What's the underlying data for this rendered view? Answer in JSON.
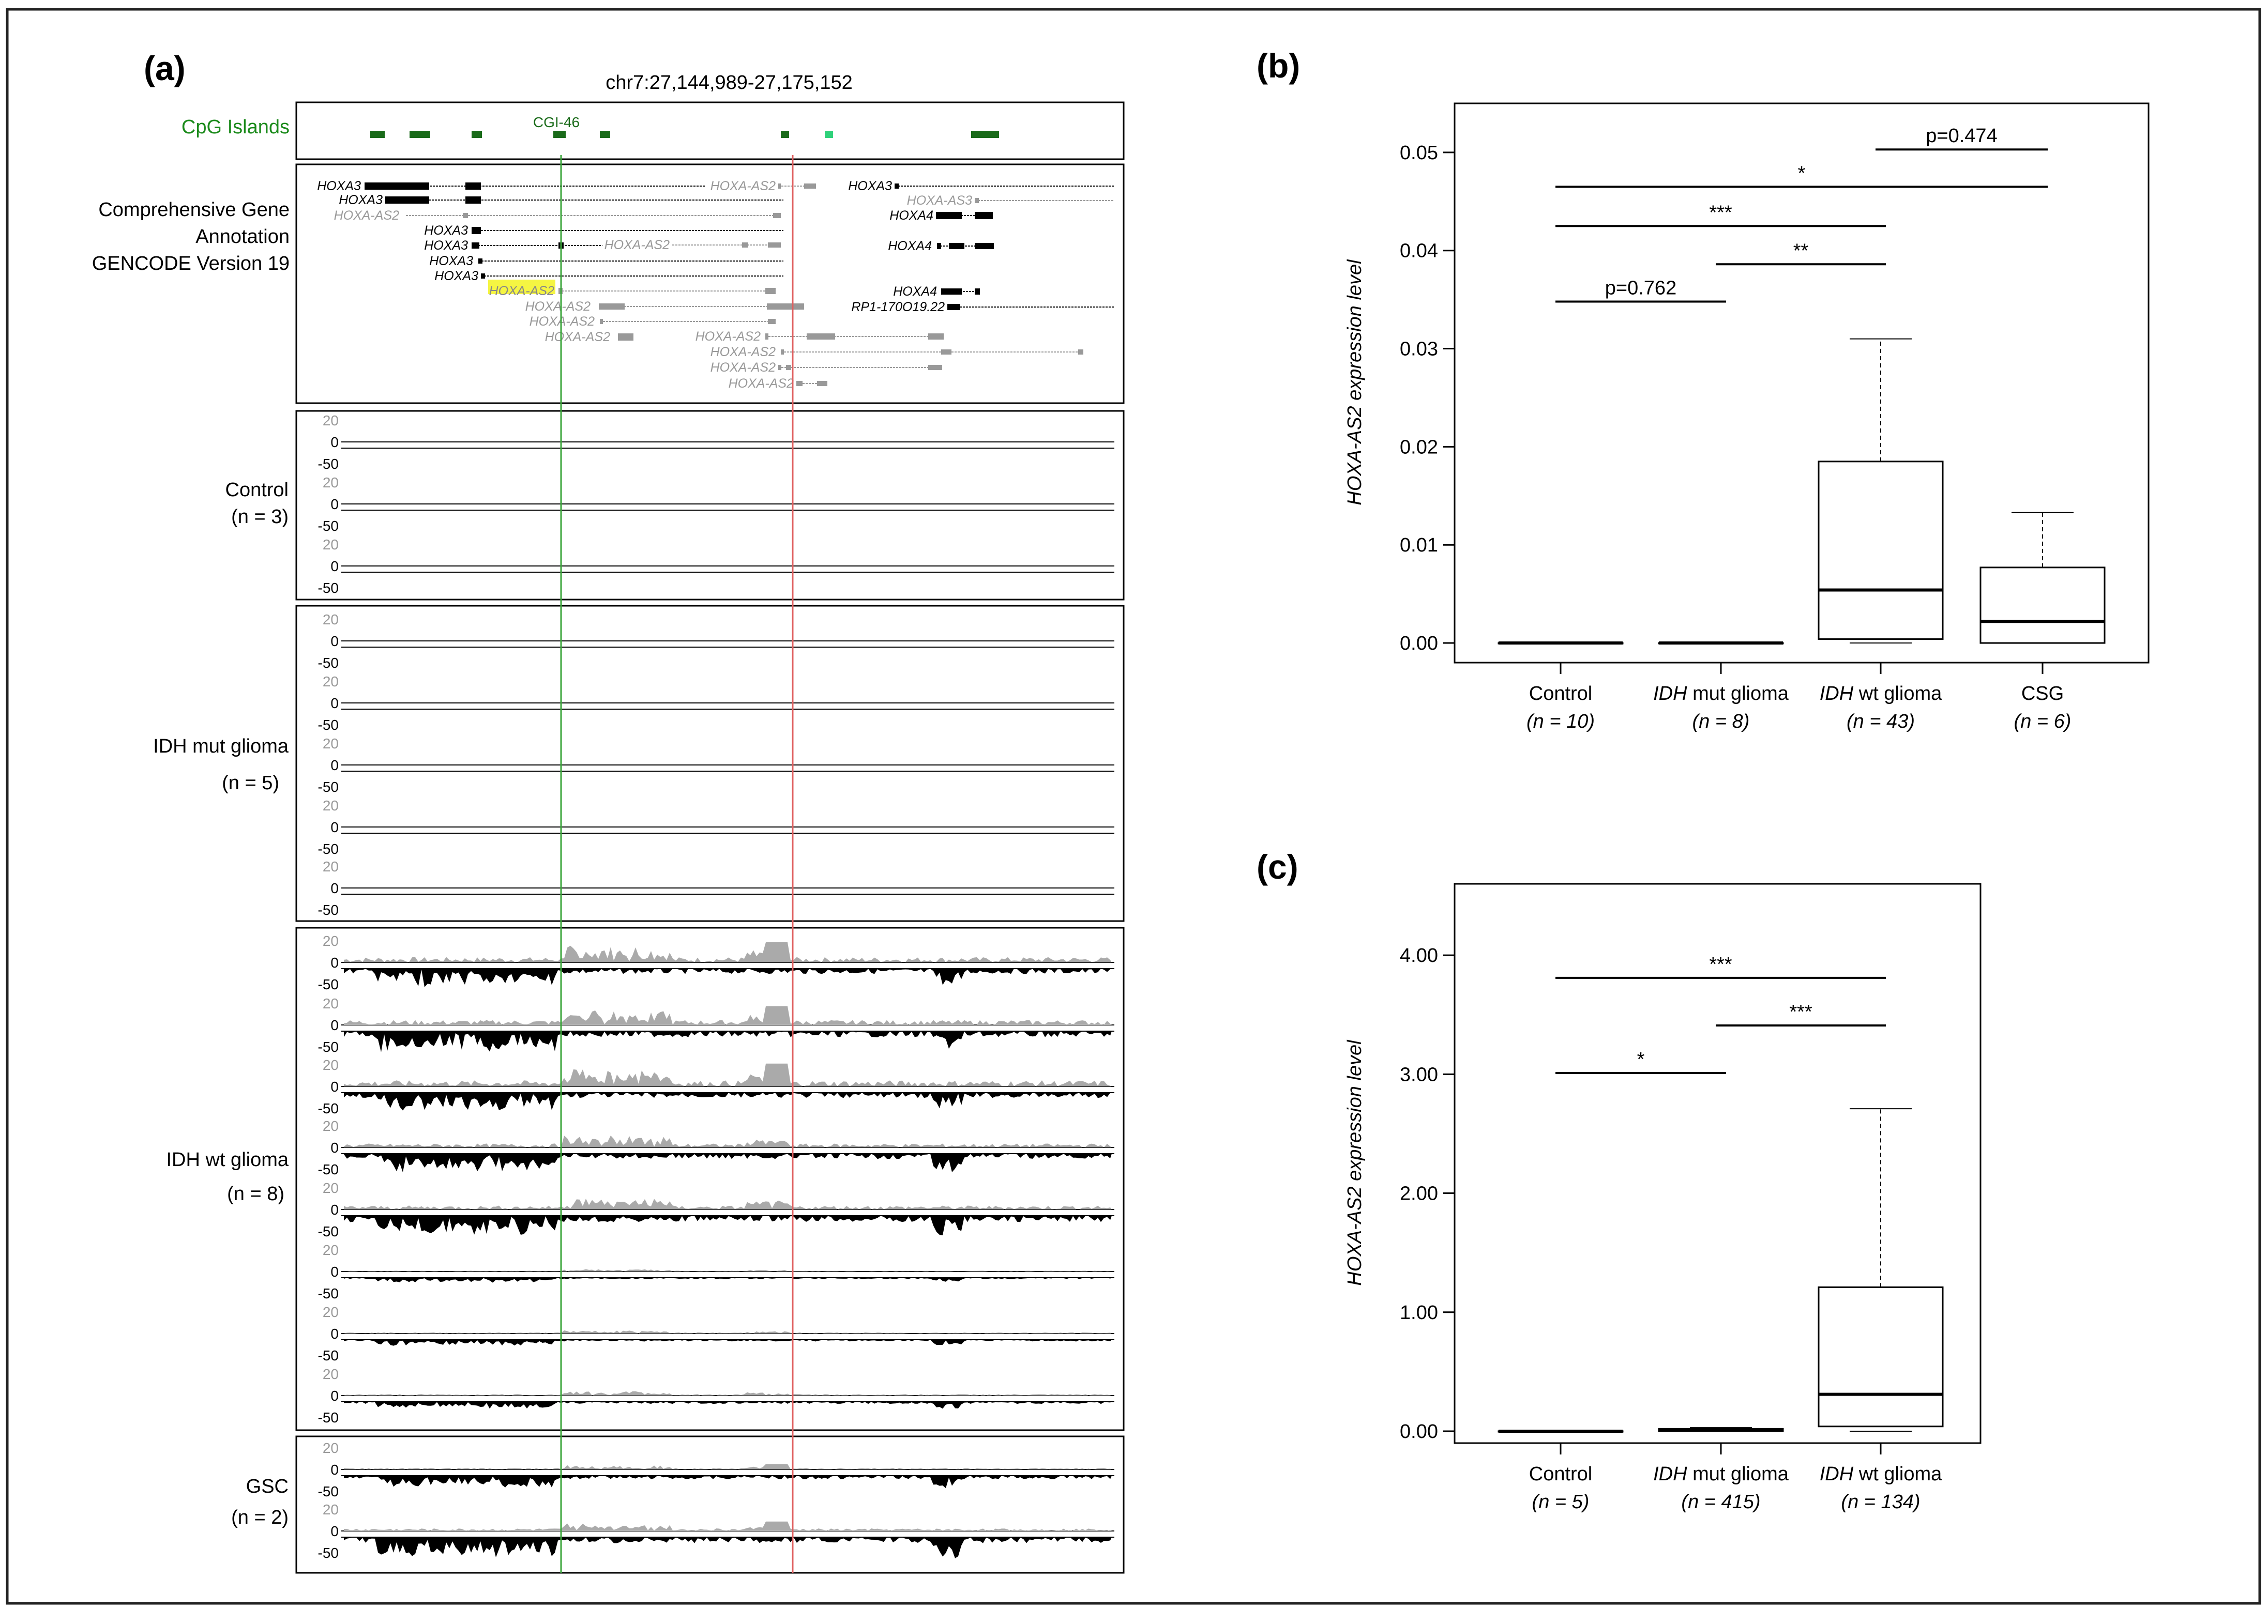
{
  "figure": {
    "panel_a": {
      "label": "(a)",
      "locus": "chr7:27,144,989-27,175,152",
      "cpg_track": {
        "title": "CpG Islands",
        "island_label": "CGI-46",
        "color": "#1a6b1a",
        "highlight_color": "#2fd17a"
      },
      "gene_track": {
        "title_lines": [
          "Comprehensive Gene",
          "Annotation",
          "GENCODE Version 19"
        ],
        "genes": [
          {
            "name": "HOXA3",
            "dark": true
          },
          {
            "name": "HOXA3",
            "dark": true
          },
          {
            "name": "HOXA-AS2",
            "dark": false
          },
          {
            "name": "HOXA3",
            "dark": true
          },
          {
            "name": "HOXA3",
            "dark": true
          },
          {
            "name": "HOXA3",
            "dark": true
          },
          {
            "name": "HOXA3",
            "dark": true
          },
          {
            "name": "HOXA-AS2",
            "dark": false
          },
          {
            "name": "HOXA-AS2",
            "dark": false
          },
          {
            "name": "HOXA-AS2",
            "dark": false
          },
          {
            "name": "HOXA-AS2",
            "dark": false
          },
          {
            "name": "HOXA-AS2",
            "dark": false
          },
          {
            "name": "HOXA-AS2",
            "dark": false
          },
          {
            "name": "HOXA-AS2",
            "dark": false
          },
          {
            "name": "HOXA-AS2",
            "dark": false
          },
          {
            "name": "HOXA-AS2",
            "dark": false
          },
          {
            "name": "HOXA3",
            "dark": true
          },
          {
            "name": "HOXA-AS3",
            "dark": false
          },
          {
            "name": "HOXA4",
            "dark": true
          },
          {
            "name": "HOXA4",
            "dark": true
          },
          {
            "name": "HOXA4",
            "dark": true
          },
          {
            "name": "RP1-170O19.22",
            "dark": true
          }
        ],
        "highlight_gene": "HOXA-AS2"
      },
      "groups": [
        {
          "name": "Control",
          "n_label": "(n = 3)",
          "tracks": 3
        },
        {
          "name": "IDH mut glioma",
          "n_label": "(n = 5)",
          "tracks": 5
        },
        {
          "name": "IDH wt glioma",
          "n_label": "(n = 8)",
          "tracks": 8
        },
        {
          "name": "GSC",
          "n_label": "(n = 2)",
          "tracks": 2
        }
      ],
      "track_ticks": [
        "20",
        "0",
        "-50"
      ]
    },
    "panel_b": {
      "label": "(b)",
      "comparisons": [
        {
          "text": "p=0.474"
        },
        {
          "text": "*"
        },
        {
          "text": "***"
        },
        {
          "text": "**"
        },
        {
          "text": "p=0.762"
        }
      ]
    },
    "panel_c": {
      "label": "(c)",
      "comparisons": [
        {
          "text": "***"
        },
        {
          "text": "***"
        },
        {
          "text": "*"
        }
      ]
    }
  },
  "chart_data": [
    {
      "type": "box",
      "panel": "(b)",
      "ylabel": "HOXA-AS2 expression level",
      "ylim": [
        -0.002,
        0.055
      ],
      "yticks": [
        "0.00",
        "0.01",
        "0.02",
        "0.03",
        "0.04",
        "0.05"
      ],
      "categories": [
        {
          "name_italic": "",
          "name": "Control",
          "n": "(n = 10)"
        },
        {
          "name_italic": "IDH",
          "name": " mut glioma",
          "n": "(n = 8)"
        },
        {
          "name_italic": "IDH",
          "name": " wt glioma",
          "n": "(n = 43)"
        },
        {
          "name_italic": "",
          "name": "CSG",
          "n": "(n = 6)"
        }
      ],
      "boxes": [
        {
          "min": 0.0,
          "q1": 0.0,
          "median": 0.0,
          "q3": 0.0,
          "max": 0.0
        },
        {
          "min": 0.0,
          "q1": 0.0,
          "median": 0.0,
          "q3": 0.0,
          "max": 0.0
        },
        {
          "min": 0.0,
          "q1": 0.0004,
          "median": 0.0054,
          "q3": 0.0185,
          "max": 0.031
        },
        {
          "min": 0.0,
          "q1": 0.0,
          "median": 0.0022,
          "q3": 0.0077,
          "max": 0.0133
        }
      ],
      "comparisons": [
        {
          "from": 3,
          "to": 4,
          "y": 0.0503
        },
        {
          "from": 1,
          "to": 4,
          "y": 0.0465
        },
        {
          "from": 1,
          "to": 3,
          "y": 0.0425
        },
        {
          "from": 2,
          "to": 3,
          "y": 0.0386
        },
        {
          "from": 1,
          "to": 2,
          "y": 0.0348
        }
      ]
    },
    {
      "type": "box",
      "panel": "(c)",
      "ylabel": "HOXA-AS2 expression level",
      "ylim": [
        -0.1,
        4.6
      ],
      "yticks": [
        "0.00",
        "1.00",
        "2.00",
        "3.00",
        "4.00"
      ],
      "categories": [
        {
          "name_italic": "",
          "name": "Control",
          "n": "(n = 5)"
        },
        {
          "name_italic": "IDH",
          "name": " mut glioma",
          "n": "(n = 415)"
        },
        {
          "name_italic": "IDH",
          "name": " wt glioma",
          "n": "(n = 134)"
        }
      ],
      "boxes": [
        {
          "min": 0.0,
          "q1": 0.0,
          "median": 0.0,
          "q3": 0.0,
          "max": 0.0
        },
        {
          "min": 0.0,
          "q1": 0.0,
          "median": 0.01,
          "q3": 0.02,
          "max": 0.03
        },
        {
          "min": 0.0,
          "q1": 0.04,
          "median": 0.31,
          "q3": 1.21,
          "max": 2.71
        }
      ],
      "comparisons": [
        {
          "from": 1,
          "to": 3,
          "y": 3.81
        },
        {
          "from": 2,
          "to": 3,
          "y": 3.41
        },
        {
          "from": 1,
          "to": 2,
          "y": 3.01
        }
      ]
    }
  ]
}
